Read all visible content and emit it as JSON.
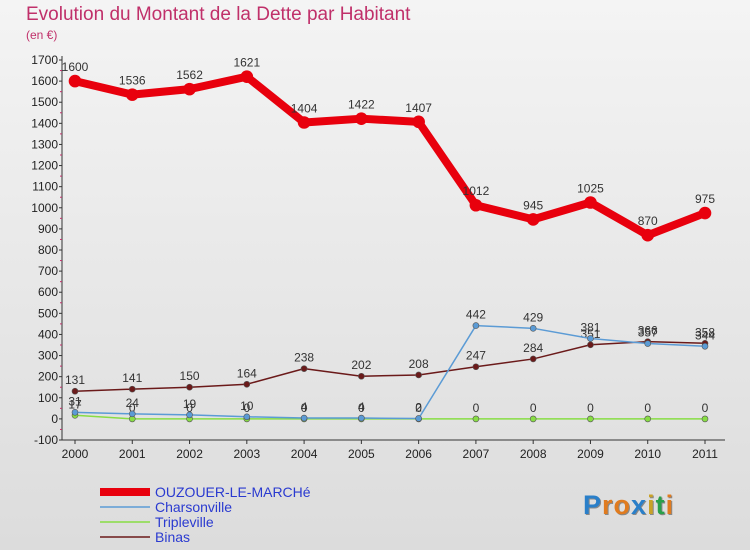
{
  "title": "Evolution du Montant de la Dette par Habitant",
  "subtitle": "(en €)",
  "brand": {
    "text": "Proxiti",
    "letter_colors": [
      "#2a7fc9",
      "#e07b1f",
      "#e07b1f",
      "#2a7fc9",
      "#c9a227",
      "#2aa04a",
      "#e07b1f"
    ]
  },
  "chart_data": {
    "type": "line",
    "x": [
      2000,
      2001,
      2002,
      2003,
      2004,
      2005,
      2006,
      2007,
      2008,
      2009,
      2010,
      2011
    ],
    "ylim": [
      -100,
      1700
    ],
    "yticks": [
      -100,
      0,
      100,
      200,
      300,
      400,
      500,
      600,
      700,
      800,
      900,
      1000,
      1100,
      1200,
      1300,
      1400,
      1500,
      1600,
      1700
    ],
    "grid": false,
    "legend_position": "bottom-left",
    "series": [
      {
        "name": "OUZOUER-LE-MARCHé",
        "color": "#e8000d",
        "width": 8,
        "values": [
          1600,
          1536,
          1562,
          1621,
          1404,
          1422,
          1407,
          1012,
          945,
          1025,
          870,
          975
        ]
      },
      {
        "name": "Charsonville",
        "color": "#5b9bd5",
        "width": 1.5,
        "values": [
          31,
          24,
          19,
          10,
          4,
          4,
          2,
          442,
          429,
          381,
          357,
          344
        ]
      },
      {
        "name": "Tripleville",
        "color": "#88dd44",
        "width": 1.5,
        "values": [
          17,
          0,
          0,
          0,
          0,
          0,
          0,
          0,
          0,
          0,
          0,
          0
        ]
      },
      {
        "name": "Binas",
        "color": "#6b1a1a",
        "width": 1.5,
        "values": [
          131,
          141,
          150,
          164,
          238,
          202,
          208,
          247,
          284,
          351,
          366,
          358
        ]
      }
    ]
  }
}
